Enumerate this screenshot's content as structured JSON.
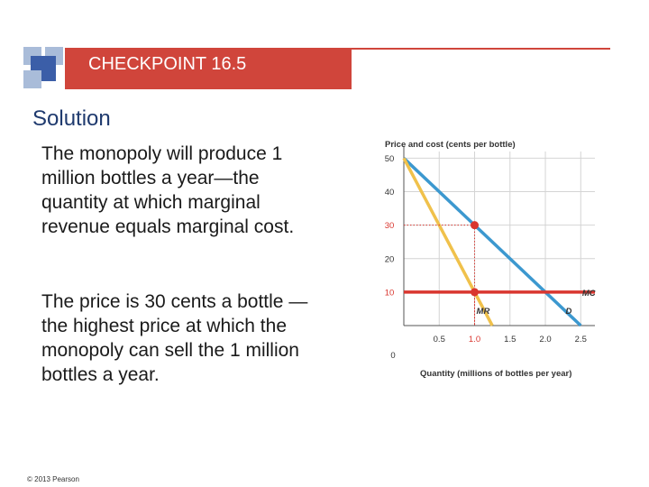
{
  "header": {
    "title": "CHECKPOINT 16.5",
    "accent_color": "#d0453b",
    "logo_colors": [
      "#a9bcd9",
      "#3b5ea8",
      "#1f3a6e"
    ]
  },
  "section": {
    "title": "Solution",
    "paragraphs": [
      "The monopoly will produce 1 million bottles a year—the quantity at which marginal revenue equals marginal cost.",
      "The price is 30 cents a bottle — the highest price at which the monopoly can sell the 1 million bottles a year."
    ]
  },
  "footer": {
    "copyright": "© 2013 Pearson"
  },
  "chart_data": {
    "type": "line",
    "ylabel": "Price and cost (cents per bottle)",
    "xlabel": "Quantity (millions of bottles per year)",
    "xlim": [
      0,
      2.7
    ],
    "ylim": [
      0,
      52
    ],
    "x_ticks": [
      0.5,
      1.0,
      1.5,
      2.0,
      2.5
    ],
    "x_tick_labels": [
      "0.5",
      "1.0",
      "1.5",
      "2.0",
      "2.5"
    ],
    "y_ticks": [
      10,
      20,
      30,
      40,
      50
    ],
    "y_tick_labels": [
      "10",
      "20",
      "30",
      "40",
      "50"
    ],
    "origin_label": "0",
    "grid": true,
    "series": [
      {
        "name": "D",
        "color": "#3c98cf",
        "points": [
          [
            0,
            50
          ],
          [
            2.5,
            0
          ]
        ]
      },
      {
        "name": "MR",
        "color": "#f0c14b",
        "points": [
          [
            0,
            50
          ],
          [
            1.25,
            0
          ]
        ]
      },
      {
        "name": "MC",
        "color": "#d9362f",
        "points": [
          [
            0,
            10
          ],
          [
            2.7,
            10
          ]
        ]
      }
    ],
    "highlight_points": [
      {
        "x": 1.0,
        "y": 30,
        "color": "#d9362f"
      },
      {
        "x": 1.0,
        "y": 10,
        "color": "#d9362f"
      }
    ],
    "highlighted_ticks": {
      "x": [
        1.0
      ],
      "y": [
        10,
        30
      ],
      "color": "#d9362f"
    }
  }
}
